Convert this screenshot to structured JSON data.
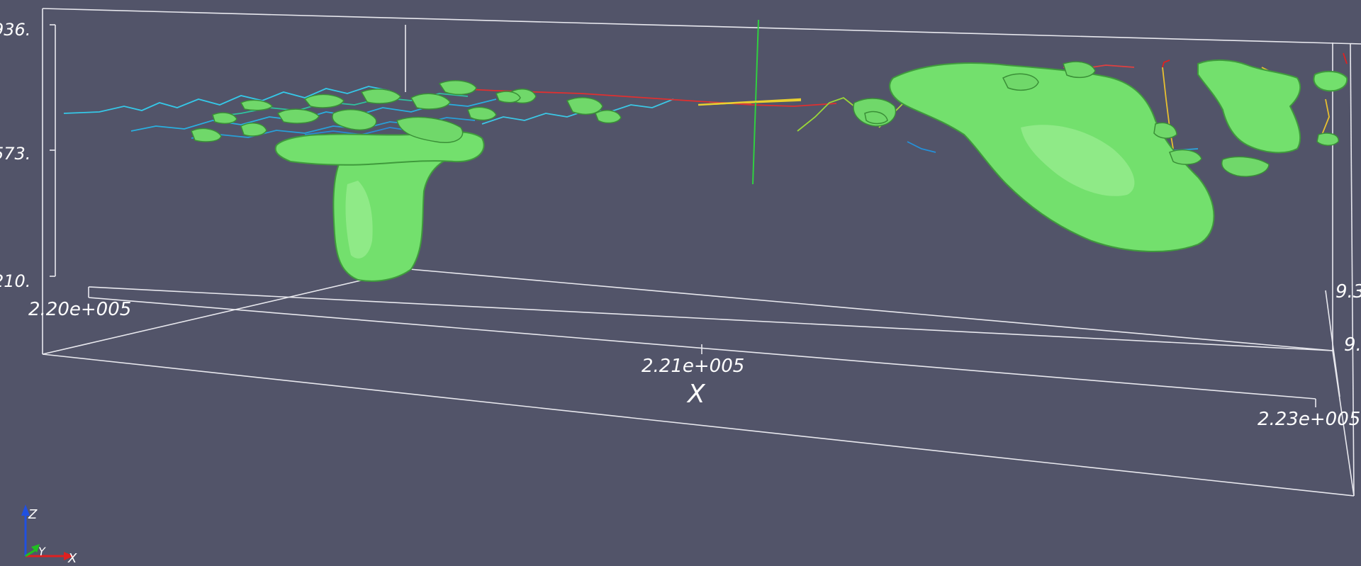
{
  "scene": {
    "background": "#525469",
    "surface_color": "#73e06d",
    "z_tick_labels": [
      "936.",
      "573.",
      "210."
    ],
    "x_tick_labels": [
      "2.20e+005",
      "2.21e+005",
      "2.23e+005"
    ],
    "x_axis_title": "X",
    "y_tick_labels": [
      "9.3",
      "9."
    ],
    "orientation_axes": {
      "z_label": "Z",
      "y_label": "Y",
      "x_label": "X",
      "colors": {
        "x": "#e02020",
        "y": "#20c020",
        "z": "#2050e0"
      }
    }
  }
}
